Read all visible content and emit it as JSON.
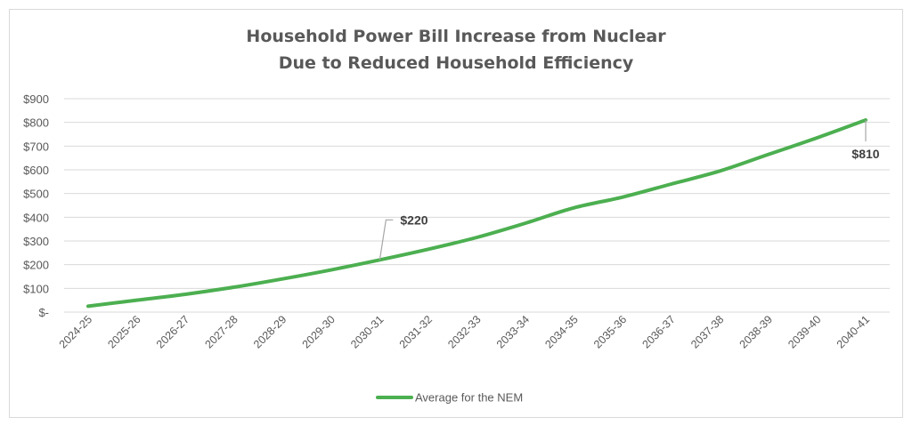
{
  "chart_data": {
    "type": "line",
    "title": [
      "Household Power Bill Increase from Nuclear",
      "Due to Reduced Household Efficiency"
    ],
    "xlabel": "",
    "ylabel": "",
    "categories": [
      "2024-25",
      "2025-26",
      "2026-27",
      "2027-28",
      "2028-29",
      "2029-30",
      "2030-31",
      "2031-32",
      "2032-33",
      "2033-34",
      "2034-35",
      "2035-36",
      "2036-37",
      "2037-38",
      "2038-39",
      "2039-40",
      "2040-41"
    ],
    "series": [
      {
        "name": "Average for the NEM",
        "color": "#4CAF50",
        "values": [
          25,
          50,
          75,
          105,
          140,
          178,
          220,
          265,
          315,
          375,
          440,
          485,
          540,
          595,
          665,
          735,
          810
        ]
      }
    ],
    "ylim": [
      0,
      900
    ],
    "yticks": [
      0,
      100,
      200,
      300,
      400,
      500,
      600,
      700,
      800,
      900
    ],
    "ytick_labels": [
      "$-",
      "$100",
      "$200",
      "$300",
      "$400",
      "$500",
      "$600",
      "$700",
      "$800",
      "$900"
    ],
    "annotations": [
      {
        "category": "2030-31",
        "text": "$220"
      },
      {
        "category": "2040-41",
        "text": "$810"
      }
    ],
    "grid": "horizontal",
    "legend_position": "bottom"
  }
}
